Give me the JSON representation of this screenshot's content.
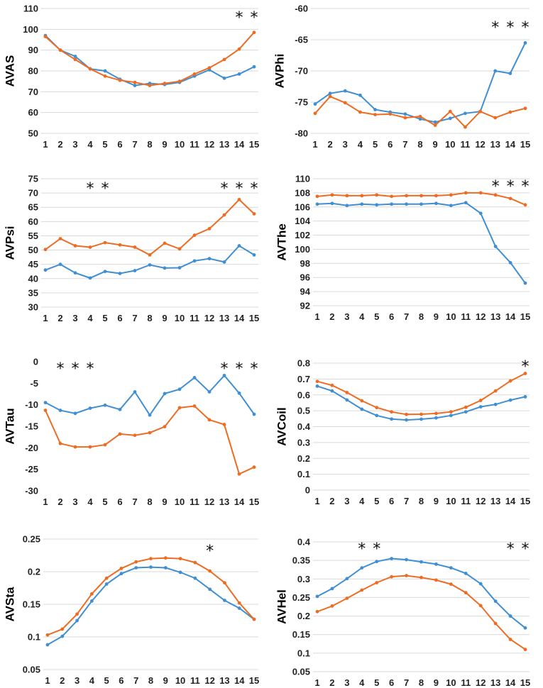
{
  "colors": {
    "blue": "#3f8fd2",
    "orange": "#ee6c22",
    "grid": "#d9d9d9"
  },
  "chart_data": [
    {
      "type": "line",
      "ylabel": "AVAS",
      "ylim": [
        50,
        110
      ],
      "yticks": [
        50,
        60,
        70,
        80,
        90,
        100,
        110
      ],
      "categories": [
        1,
        2,
        3,
        4,
        5,
        6,
        7,
        8,
        9,
        10,
        11,
        12,
        13,
        14,
        15
      ],
      "significance": [
        14,
        15
      ],
      "grid": true,
      "series": [
        {
          "name": "blue",
          "values": [
            97,
            90,
            87,
            81,
            80,
            76,
            73,
            74,
            73.5,
            74.5,
            77.5,
            80.5,
            76.5,
            78.5,
            82
          ]
        },
        {
          "name": "orange",
          "values": [
            96.5,
            90,
            85.5,
            81,
            77.5,
            75.5,
            74.5,
            73,
            74,
            75,
            78.5,
            81.5,
            85.5,
            90.5,
            98.5
          ]
        }
      ]
    },
    {
      "type": "line",
      "ylabel": "AVPhi",
      "ylim": [
        -80,
        -60
      ],
      "yticks": [
        -80,
        -75,
        -70,
        -65,
        -60
      ],
      "categories": [
        1,
        2,
        3,
        4,
        5,
        6,
        7,
        8,
        9,
        10,
        11,
        12,
        13,
        14,
        15
      ],
      "significance": [
        13,
        14,
        15
      ],
      "grid": true,
      "series": [
        {
          "name": "blue",
          "values": [
            -75.3,
            -73.6,
            -73.2,
            -73.9,
            -76.2,
            -76.6,
            -76.9,
            -77.7,
            -78.2,
            -77.6,
            -76.8,
            -76.5,
            -70,
            -70.4,
            -65.5
          ]
        },
        {
          "name": "orange",
          "values": [
            -76.8,
            -74.1,
            -75.1,
            -76.6,
            -77,
            -76.9,
            -77.5,
            -77.3,
            -78.7,
            -76.5,
            -79,
            -76.5,
            -77.5,
            -76.6,
            -76
          ]
        }
      ]
    },
    {
      "type": "line",
      "ylabel": "AVPsi",
      "ylim": [
        30,
        75
      ],
      "yticks": [
        30,
        35,
        40,
        45,
        50,
        55,
        60,
        65,
        70,
        75
      ],
      "categories": [
        1,
        2,
        3,
        4,
        5,
        6,
        7,
        8,
        9,
        10,
        11,
        12,
        13,
        14,
        15
      ],
      "significance": [
        4,
        5,
        13,
        14,
        15
      ],
      "grid": true,
      "series": [
        {
          "name": "blue",
          "values": [
            43,
            45,
            42,
            40.2,
            42.5,
            41.8,
            42.8,
            44.8,
            43.7,
            43.8,
            46.2,
            47,
            45.8,
            51.5,
            48.3
          ]
        },
        {
          "name": "orange",
          "values": [
            50.2,
            54,
            51.5,
            51,
            52.6,
            51.8,
            51,
            48.3,
            52.4,
            50.4,
            55.2,
            57.5,
            62.3,
            67.7,
            62.7
          ]
        }
      ]
    },
    {
      "type": "line",
      "ylabel": "AVThe",
      "ylim": [
        92,
        110
      ],
      "yticks": [
        92,
        94,
        96,
        98,
        100,
        102,
        104,
        106,
        108,
        110
      ],
      "categories": [
        1,
        2,
        3,
        4,
        5,
        6,
        7,
        8,
        9,
        10,
        11,
        12,
        13,
        14,
        15
      ],
      "significance": [
        13,
        14,
        15
      ],
      "grid": true,
      "series": [
        {
          "name": "blue",
          "values": [
            106.4,
            106.5,
            106.2,
            106.4,
            106.3,
            106.4,
            106.4,
            106.4,
            106.5,
            106.2,
            106.6,
            105.1,
            100.4,
            98.1,
            95.2
          ]
        },
        {
          "name": "orange",
          "values": [
            107.5,
            107.7,
            107.6,
            107.6,
            107.7,
            107.5,
            107.6,
            107.6,
            107.6,
            107.7,
            108,
            108,
            107.7,
            107.2,
            106.3
          ]
        }
      ]
    },
    {
      "type": "line",
      "ylabel": "AVTau",
      "ylim": [
        -30,
        0
      ],
      "yticks": [
        -30,
        -25,
        -20,
        -15,
        -10,
        -5,
        0
      ],
      "categories": [
        1,
        2,
        3,
        4,
        5,
        6,
        7,
        8,
        9,
        10,
        11,
        12,
        13,
        14,
        15
      ],
      "significance": [
        2,
        3,
        4,
        13,
        14,
        15
      ],
      "grid": false,
      "series": [
        {
          "name": "blue",
          "values": [
            -9.5,
            -11.3,
            -12,
            -10.8,
            -10.1,
            -11.1,
            -7,
            -12.4,
            -7.4,
            -6.4,
            -3.7,
            -7,
            -3.2,
            -7.3,
            -12.2
          ]
        },
        {
          "name": "orange",
          "values": [
            -11.3,
            -19,
            -19.8,
            -19.8,
            -19.3,
            -16.8,
            -17.1,
            -16.5,
            -15.1,
            -10.7,
            -10.3,
            -13.5,
            -14.6,
            -26.1,
            -24.5
          ]
        }
      ]
    },
    {
      "type": "line",
      "ylabel": "AVCoil",
      "ylim": [
        0,
        0.8
      ],
      "yticks": [
        0,
        0.1,
        0.2,
        0.3,
        0.4,
        0.5,
        0.6,
        0.7,
        0.8
      ],
      "categories": [
        1,
        2,
        3,
        4,
        5,
        6,
        7,
        8,
        9,
        10,
        11,
        12,
        13,
        14,
        15
      ],
      "significance": [
        15
      ],
      "grid": true,
      "series": [
        {
          "name": "blue",
          "values": [
            0.655,
            0.625,
            0.568,
            0.51,
            0.47,
            0.448,
            0.442,
            0.447,
            0.455,
            0.47,
            0.493,
            0.525,
            0.54,
            0.567,
            0.588
          ]
        },
        {
          "name": "orange",
          "values": [
            0.685,
            0.66,
            0.615,
            0.563,
            0.52,
            0.493,
            0.477,
            0.478,
            0.483,
            0.493,
            0.522,
            0.565,
            0.625,
            0.688,
            0.735
          ]
        }
      ]
    },
    {
      "type": "line",
      "ylabel": "AVSta",
      "ylim": [
        0.05,
        0.25
      ],
      "yticks": [
        0.05,
        0.1,
        0.15,
        0.2,
        0.25
      ],
      "categories": [
        1,
        2,
        3,
        4,
        5,
        6,
        7,
        8,
        9,
        10,
        11,
        12,
        13,
        14,
        15
      ],
      "significance": [
        12
      ],
      "grid": true,
      "series": [
        {
          "name": "blue",
          "values": [
            0.088,
            0.101,
            0.125,
            0.155,
            0.181,
            0.197,
            0.206,
            0.207,
            0.206,
            0.199,
            0.19,
            0.173,
            0.156,
            0.144,
            0.127
          ]
        },
        {
          "name": "orange",
          "values": [
            0.103,
            0.112,
            0.135,
            0.166,
            0.19,
            0.205,
            0.215,
            0.22,
            0.221,
            0.22,
            0.214,
            0.201,
            0.183,
            0.152,
            0.127
          ]
        }
      ]
    },
    {
      "type": "line",
      "ylabel": "AVHel",
      "ylim": [
        0.05,
        0.4
      ],
      "yticks": [
        0.05,
        0.1,
        0.15,
        0.2,
        0.25,
        0.3,
        0.35,
        0.4
      ],
      "categories": [
        1,
        2,
        3,
        4,
        5,
        6,
        7,
        8,
        9,
        10,
        11,
        12,
        13,
        14,
        15
      ],
      "significance": [
        4,
        5,
        14,
        15
      ],
      "grid": true,
      "series": [
        {
          "name": "blue",
          "values": [
            0.253,
            0.274,
            0.301,
            0.33,
            0.347,
            0.355,
            0.352,
            0.346,
            0.34,
            0.33,
            0.315,
            0.287,
            0.24,
            0.2,
            0.168
          ]
        },
        {
          "name": "orange",
          "values": [
            0.212,
            0.227,
            0.248,
            0.27,
            0.29,
            0.306,
            0.309,
            0.304,
            0.297,
            0.286,
            0.263,
            0.228,
            0.18,
            0.137,
            0.11
          ]
        }
      ]
    }
  ]
}
